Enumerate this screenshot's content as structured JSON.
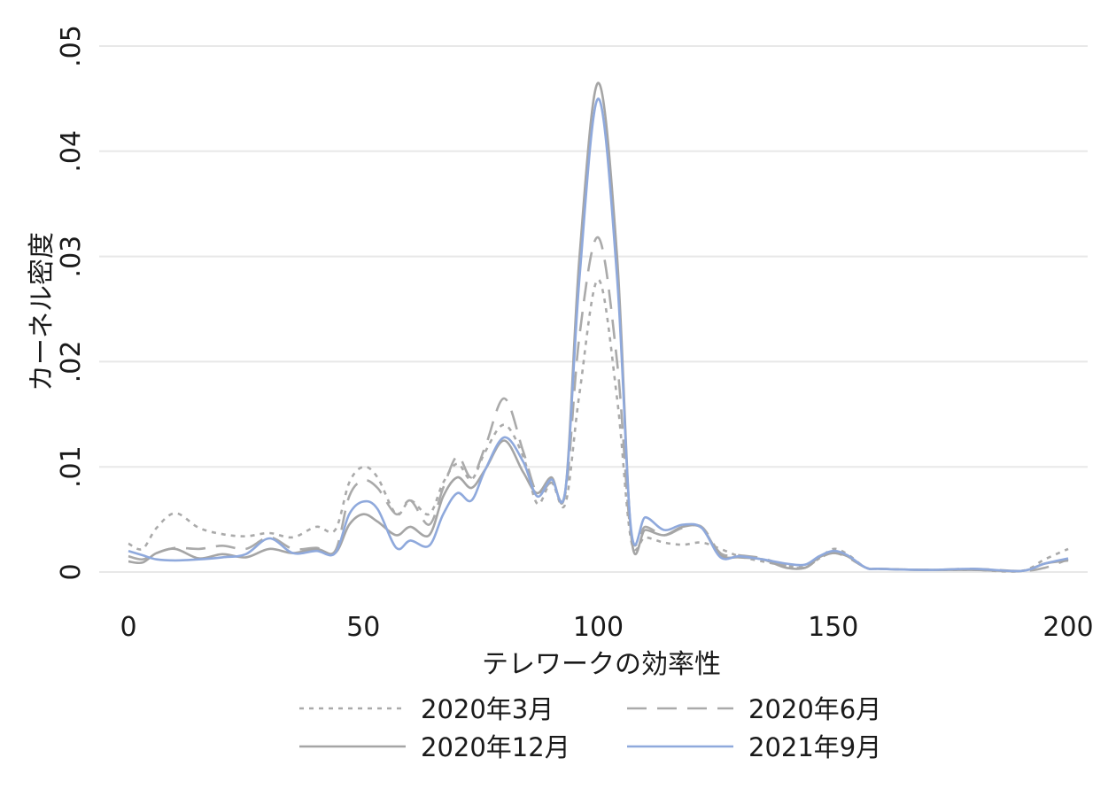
{
  "chart_data": {
    "type": "line",
    "title": "",
    "xlabel": "テレワークの効率性",
    "ylabel": "カーネル密度",
    "xlim": [
      -3,
      204
    ],
    "ylim": [
      -0.0025,
      0.0515
    ],
    "xticks": [
      0,
      50,
      100,
      150,
      200
    ],
    "xtick_labels": [
      "0",
      "50",
      "100",
      "150",
      "200"
    ],
    "yticks": [
      0,
      0.01,
      0.02,
      0.03,
      0.04,
      0.05
    ],
    "ytick_labels": [
      "0",
      ".01",
      ".02",
      ".03",
      ".04",
      ".05"
    ],
    "grid": "horizontal",
    "legend_position": "bottom",
    "x": [
      0,
      3,
      6,
      10,
      15,
      20,
      25,
      30,
      35,
      40,
      44,
      47,
      50,
      53,
      57,
      60,
      64,
      67,
      70,
      73,
      76,
      80,
      84,
      87,
      90,
      93,
      96,
      100,
      104,
      107,
      110,
      114,
      118,
      122,
      126,
      130,
      135,
      140,
      144,
      147,
      150,
      153,
      157,
      160,
      170,
      180,
      190,
      195,
      200
    ],
    "series": [
      {
        "name": "2020年3月",
        "color": "#aaaaaa",
        "dash": "dotted",
        "values": [
          0.0027,
          0.0022,
          0.0042,
          0.0056,
          0.0042,
          0.0036,
          0.0034,
          0.0037,
          0.0033,
          0.0043,
          0.004,
          0.0085,
          0.01,
          0.009,
          0.0055,
          0.0068,
          0.0055,
          0.0085,
          0.0103,
          0.0088,
          0.0115,
          0.014,
          0.011,
          0.0065,
          0.0085,
          0.0065,
          0.017,
          0.0278,
          0.0165,
          0.003,
          0.0033,
          0.0028,
          0.0026,
          0.0028,
          0.0022,
          0.0015,
          0.001,
          0.0006,
          0.0005,
          0.0013,
          0.0022,
          0.0017,
          0.0004,
          0.0003,
          0.0002,
          0.0002,
          0.0001,
          0.0012,
          0.0022
        ]
      },
      {
        "name": "2020年6月",
        "color": "#aaaaaa",
        "dash": "dashed",
        "values": [
          0.0015,
          0.0012,
          0.0018,
          0.0023,
          0.0022,
          0.0025,
          0.0022,
          0.0033,
          0.0022,
          0.0023,
          0.002,
          0.0072,
          0.0087,
          0.008,
          0.0055,
          0.0068,
          0.0045,
          0.008,
          0.011,
          0.009,
          0.012,
          0.0165,
          0.0115,
          0.0075,
          0.0085,
          0.0075,
          0.0225,
          0.0318,
          0.02,
          0.0035,
          0.0043,
          0.0035,
          0.0042,
          0.0043,
          0.0018,
          0.0016,
          0.0013,
          0.0006,
          0.0004,
          0.0013,
          0.0018,
          0.0014,
          0.0004,
          0.0003,
          0.0002,
          0.0003,
          0.0001,
          0.0004,
          0.0012
        ]
      },
      {
        "name": "2020年12月",
        "color": "#a5a5a5",
        "dash": "solid",
        "values": [
          0.001,
          0.0009,
          0.0018,
          0.0022,
          0.0013,
          0.0017,
          0.0014,
          0.0022,
          0.0018,
          0.0022,
          0.0018,
          0.0045,
          0.0055,
          0.0048,
          0.0035,
          0.0043,
          0.0035,
          0.0072,
          0.009,
          0.008,
          0.0098,
          0.0125,
          0.0095,
          0.0075,
          0.009,
          0.0078,
          0.03,
          0.0465,
          0.03,
          0.0035,
          0.004,
          0.0035,
          0.0043,
          0.0042,
          0.0016,
          0.0014,
          0.0012,
          0.0004,
          0.0004,
          0.0014,
          0.0018,
          0.0015,
          0.0004,
          0.0003,
          0.0002,
          0.0002,
          0.0001,
          0.0008,
          0.0011
        ]
      },
      {
        "name": "2021年9月",
        "color": "#8fa9dc",
        "dash": "solid",
        "values": [
          0.002,
          0.0016,
          0.0012,
          0.0011,
          0.0012,
          0.0014,
          0.0017,
          0.0032,
          0.0018,
          0.002,
          0.0018,
          0.0055,
          0.0067,
          0.006,
          0.0023,
          0.003,
          0.0025,
          0.0055,
          0.0075,
          0.0068,
          0.0098,
          0.0128,
          0.0105,
          0.0072,
          0.0088,
          0.0078,
          0.028,
          0.045,
          0.028,
          0.004,
          0.0052,
          0.004,
          0.0045,
          0.0042,
          0.0014,
          0.0015,
          0.0012,
          0.0008,
          0.0007,
          0.0015,
          0.002,
          0.0016,
          0.0004,
          0.0003,
          0.0002,
          0.0003,
          0.0001,
          0.0008,
          0.0013
        ]
      }
    ]
  }
}
